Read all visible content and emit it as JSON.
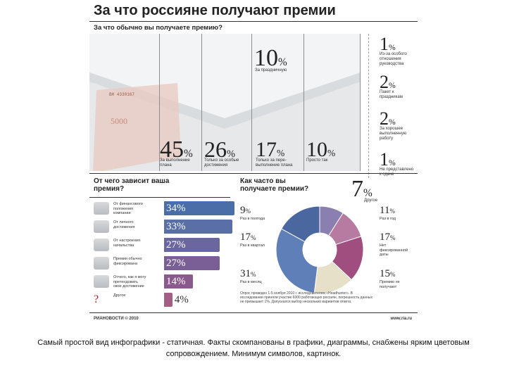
{
  "title": "За что россияне получают премии",
  "subtitle": "За что обычно вы получаете премию?",
  "top_items": [
    {
      "pct": "45",
      "label": "За выполнение плана"
    },
    {
      "pct": "26",
      "label": "Только за особые достижения"
    },
    {
      "pct": "17",
      "label": "Только за пере-выполнение плана"
    },
    {
      "pct": "10",
      "label": "Просто так"
    },
    {
      "pct": "10",
      "label": "За праздничную"
    }
  ],
  "right_items": [
    {
      "pct": "1",
      "label": "Из-за особого отношения руководства"
    },
    {
      "pct": "2",
      "label": "Пакет к праздникам"
    },
    {
      "pct": "2",
      "label": "За хорошее выполненную работу"
    },
    {
      "pct": "1",
      "label": "Не представлено к сдаче"
    }
  ],
  "other_pct": "7",
  "other_label": "Другое",
  "unit": "%",
  "bars_title": "От чего зависит ваша премия?",
  "bars": [
    {
      "label": "От финансового положения компании",
      "value": 34,
      "color": "#4a6fa8"
    },
    {
      "label": "От личного достижения",
      "value": 33,
      "color": "#5a6fa6"
    },
    {
      "label": "От настроения начальства",
      "value": 27,
      "color": "#6a67a0"
    },
    {
      "label": "Премия обычно фиксирована",
      "value": 27,
      "color": "#7a5f97"
    },
    {
      "label": "Отчего, как я могу претендовать свое достижение",
      "value": 14,
      "color": "#8a5a8c"
    },
    {
      "label": "Другое",
      "value": 4,
      "color": "#a45d83"
    }
  ],
  "bars_max": 34,
  "bars_q": "?",
  "pie_title": "Как часто вы получаете премии?",
  "pie_items": [
    {
      "pct": "9",
      "label": "Раз в полгода",
      "value": 9,
      "color": "#8b7fb0"
    },
    {
      "pct": "11",
      "label": "Раз в год",
      "value": 11,
      "color": "#b77aa0"
    },
    {
      "pct": "17",
      "label": "Нет фиксированной даты",
      "value": 17,
      "color": "#a04e80"
    },
    {
      "pct": "15",
      "label": "Премию не получают",
      "value": 15,
      "color": "#e6e0c8"
    },
    {
      "pct": "31",
      "label": "Раз в месяц",
      "value": 31,
      "color": "#5f7fb8"
    },
    {
      "pct": "17",
      "label": "Раз в квартал",
      "value": 17,
      "color": "#4a679f"
    }
  ],
  "note": "Опрос проведен 1-5 ноября 2010 г. исследователем «Headhunter». В исследовании приняли участие 6000 работающих россиян, погрешность данных не превышает 1%. Допускался выбор нескольких вариантов ответа.",
  "footer_logo": "РИАНОВОСТИ © 2010",
  "footer_url": "www.ria.ru",
  "caption": "Самый простой вид инфографики - статичная. Факты скомпанованы в графики, диаграммы, снабжены ярким цветовым сопровождением. Минимум символов, картинок.",
  "chart_data": [
    {
      "type": "bar",
      "title": "За что обычно вы получаете премию?",
      "categories": [
        "За выполнение плана",
        "Только за особые достижения",
        "Только за пере-выполнение плана",
        "Просто так",
        "За праздничную",
        "Из-за особого отношения руководства",
        "Пакет к праздникам",
        "За хорошее выполненную работу",
        "Не представлено к сдаче",
        "Другое"
      ],
      "values": [
        45,
        26,
        17,
        10,
        10,
        1,
        2,
        2,
        1,
        7
      ],
      "ylabel": "%"
    },
    {
      "type": "bar",
      "title": "От чего зависит ваша премия?",
      "categories": [
        "От финансового положения компании",
        "От личного достижения",
        "От настроения начальства",
        "Премия обычно фиксирована",
        "Отчего, как я могу претендовать свое достижение",
        "Другое"
      ],
      "values": [
        34,
        33,
        27,
        27,
        14,
        4
      ],
      "ylabel": "%"
    },
    {
      "type": "pie",
      "title": "Как часто вы получаете премии?",
      "categories": [
        "Раз в полгода",
        "Раз в год",
        "Нет фиксированной даты",
        "Премию не получают",
        "Раз в месяц",
        "Раз в квартал"
      ],
      "values": [
        9,
        11,
        17,
        15,
        31,
        17
      ]
    }
  ]
}
